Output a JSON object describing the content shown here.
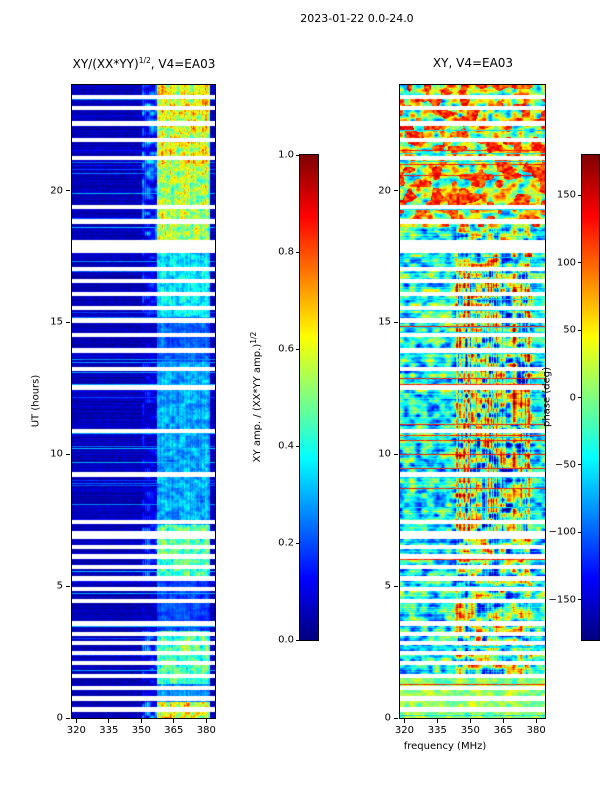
{
  "figure": {
    "suptitle": "2023-01-22 0.0-24.0",
    "xlabel": "frequency (MHz)",
    "ylabel": "UT (hours)"
  },
  "panels": {
    "left": {
      "title_pre": "XY/(XX*YY)",
      "title_sup": "1/2",
      "title_post": ", V4=EA03"
    },
    "right": {
      "title": "XY, V4=EA03"
    }
  },
  "colorbars": {
    "amp": {
      "label_pre": "XY amp. / (XX*YY amp.)",
      "label_sup": "1/2",
      "range": [
        0,
        1
      ],
      "tick_values": [
        1.0,
        0.8,
        0.6,
        0.4,
        0.2,
        0.0
      ],
      "tick_labels": [
        "1.0",
        "0.8",
        "0.6",
        "0.4",
        "0.2",
        "0.0"
      ]
    },
    "phase": {
      "label": "phase (deg)",
      "range": [
        -180,
        180
      ],
      "tick_values": [
        150,
        100,
        50,
        0,
        -50,
        -100,
        -150
      ],
      "tick_labels": [
        "150",
        "100",
        "50",
        "0",
        "−50",
        "−100",
        "−150"
      ]
    }
  },
  "axis_ticks": {
    "x_values": [
      320,
      335,
      350,
      365,
      380
    ],
    "x_labels": [
      "320",
      "335",
      "350",
      "365",
      "380"
    ],
    "y_values": [
      0,
      5,
      10,
      15,
      20
    ],
    "y_labels": [
      "0",
      "5",
      "10",
      "15",
      "20"
    ]
  },
  "data_gaps_hours": [
    [
      0.35,
      0.05
    ],
    [
      0.75,
      0.05
    ],
    [
      1.15,
      0.04
    ],
    [
      1.6,
      0.04
    ],
    [
      2.1,
      0.05
    ],
    [
      2.5,
      0.04
    ],
    [
      2.85,
      0.04
    ],
    [
      3.2,
      0.05
    ],
    [
      3.6,
      0.04
    ],
    [
      4.45,
      0.05
    ],
    [
      4.9,
      0.04
    ],
    [
      5.3,
      0.05
    ],
    [
      5.75,
      0.04
    ],
    [
      6.15,
      0.05
    ],
    [
      6.5,
      0.04
    ],
    [
      6.95,
      0.12
    ],
    [
      7.45,
      0.05
    ],
    [
      9.25,
      0.05
    ],
    [
      10.9,
      0.04
    ],
    [
      12.55,
      0.05
    ],
    [
      13.25,
      0.04
    ],
    [
      13.95,
      0.05
    ],
    [
      14.55,
      0.04
    ],
    [
      15.1,
      0.06
    ],
    [
      15.55,
      0.04
    ],
    [
      16.1,
      0.05
    ],
    [
      16.6,
      0.04
    ],
    [
      17.05,
      0.04
    ],
    [
      17.9,
      0.2
    ],
    [
      18.85,
      0.06
    ],
    [
      19.4,
      0.04
    ],
    [
      21.25,
      0.05
    ],
    [
      21.95,
      0.04
    ],
    [
      22.55,
      0.05
    ],
    [
      23.15,
      0.04
    ],
    [
      23.55,
      0.04
    ]
  ],
  "chart_data": [
    {
      "type": "heatmap",
      "title": "XY/(XX*YY)^(1/2), V4=EA03",
      "xlabel": "frequency (MHz)",
      "ylabel": "UT (hours)",
      "x_range_mhz": [
        318,
        384
      ],
      "y_range_hours": [
        0,
        24
      ],
      "xticks": [
        320,
        335,
        350,
        365,
        380
      ],
      "yticks": [
        0,
        5,
        10,
        15,
        20
      ],
      "colormap": "jet",
      "colorbar": {
        "label": "XY amp. / (XX*YY amp.)^(1/2)",
        "range": [
          0,
          1
        ],
        "ticks": [
          0,
          0.2,
          0.4,
          0.6,
          0.8,
          1.0
        ]
      },
      "background_level": 0.06,
      "rfi_band_mhz": [
        357,
        381.5
      ],
      "mid_band_mhz": [
        350,
        357
      ],
      "band_activity_windows_hours": [
        [
          0,
          0.6,
          0.95
        ],
        [
          0.6,
          1.3,
          0.4
        ],
        [
          1.3,
          3.3,
          0.7
        ],
        [
          3.3,
          5.3,
          0.3
        ],
        [
          5.3,
          7.3,
          0.7
        ],
        [
          7.3,
          13.5,
          0.45
        ],
        [
          13.5,
          15.2,
          0.35
        ],
        [
          15.2,
          18.0,
          0.55
        ],
        [
          18.0,
          21.0,
          0.85
        ],
        [
          21.0,
          24.01,
          0.95
        ]
      ],
      "description": "Normalized cross-hand amplitude XY/sqrt(XX*YY) vs UT (0-24 h, bottom to top) and frequency (~318-384 MHz). Background is near 0.0-0.1 (dark blue) with occasional brighter full-band horizontal rows; a strongly mottled band above ~357 MHz reaches amplitudes 0.6-1.0 (orange/red) near 0-0.6 h, 1.3-3.3 h, 5.3-7.3 h and 18-24 h, and 0.3-0.6 (cyan/green vertical stripes) at other times. White horizontal stripes are data gaps (see data_gaps_hours)."
    },
    {
      "type": "heatmap",
      "title": "XY, V4=EA03",
      "quantity": "cross-hand phase",
      "xlabel": "frequency (MHz)",
      "ylabel": "UT (hours)",
      "x_range_mhz": [
        318,
        384
      ],
      "y_range_hours": [
        0,
        24
      ],
      "xticks": [
        320,
        335,
        350,
        365,
        380
      ],
      "yticks": [
        0,
        5,
        10,
        15,
        20
      ],
      "colormap": "jet",
      "colorbar": {
        "label": "phase (deg)",
        "range": [
          -180,
          180
        ],
        "ticks": [
          -150,
          -100,
          -50,
          0,
          50,
          100,
          150
        ]
      },
      "active_band_mhz": [
        343,
        378
      ],
      "coherent_top_region_hours": [
        18.6,
        24
      ],
      "coherent_bottom_region_hours": [
        0,
        1.6
      ],
      "description": "XY cross-correlation phase (deg) over the same time/frequency grid, jet colormap spanning about -180 to +180 deg. Mostly noisy cyan/blue phases (~-120 to 0 deg) with strong coherent red/orange patches (+100 to +180 deg) and dark-blue patches concentrated in the ~343-378 MHz band; green/cyan coherent structure with red streaks above ~18.6 h and greenish rows near 0-1.6 h; same white data-gap rows as the left panel."
    }
  ]
}
